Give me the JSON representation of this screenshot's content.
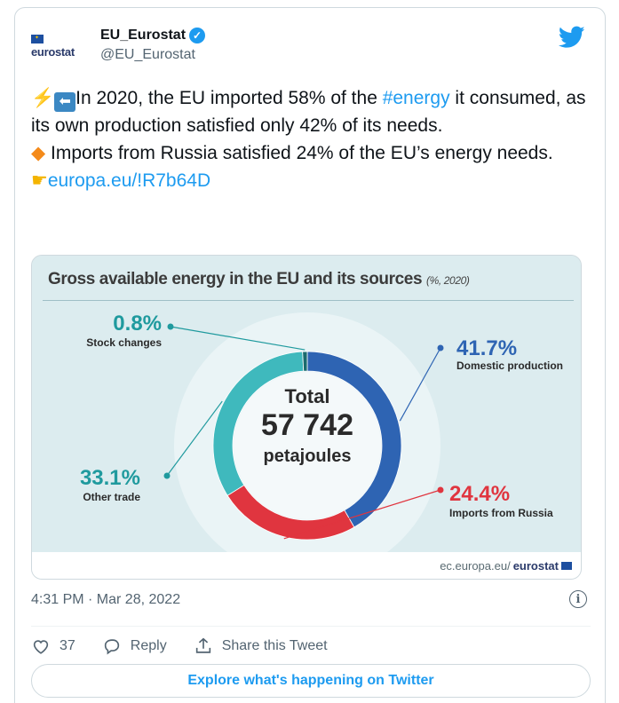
{
  "tweet": {
    "display_name": "EU_Eurostat",
    "handle": "@EU_Eurostat",
    "avatar_word": "eurostat",
    "text": {
      "line1_pre": "In 2020, the EU imported 58% of the ",
      "hashtag": "#energy",
      "line1_post": " it consumed, as its own production satisfied only 42% of its needs.",
      "line2": " Imports from Russia satisfied 24% of the EU’s energy needs.",
      "link": "europa.eu/!R7b64D"
    },
    "timestamp": "4:31 PM · Mar 28, 2022",
    "likes": "37",
    "reply_label": "Reply",
    "share_label": "Share this Tweet",
    "explore_label": "Explore what's happening on Twitter",
    "icons": [
      "verified-icon",
      "twitter-bird-icon",
      "info-icon",
      "heart-icon",
      "reply-icon",
      "share-icon"
    ]
  },
  "infographic": {
    "title": "Gross available energy in the EU and its sources",
    "subtitle": "(%, 2020)",
    "center_line1": "Total",
    "center_line2": "57 742",
    "center_line3": "petajoules",
    "footer_domain": "ec.europa.eu/",
    "footer_brand": "eurostat"
  },
  "chart_data": {
    "type": "pie",
    "title": "Gross available energy in the EU and its sources",
    "subtitle": "(%, 2020)",
    "categories": [
      "Domestic production",
      "Imports from Russia",
      "Other trade",
      "Stock changes"
    ],
    "values": [
      41.7,
      24.4,
      33.1,
      0.8
    ],
    "value_labels": [
      "41.7%",
      "24.4%",
      "33.1%",
      "0.8%"
    ],
    "colors": [
      "#2e64b3",
      "#e0353f",
      "#3fb9bd",
      "#1b6b6e"
    ],
    "label_colors": [
      "#2e64b3",
      "#e0353f",
      "#1f9a9e",
      "#1f9a9e"
    ],
    "total_label": "57 742"
  }
}
